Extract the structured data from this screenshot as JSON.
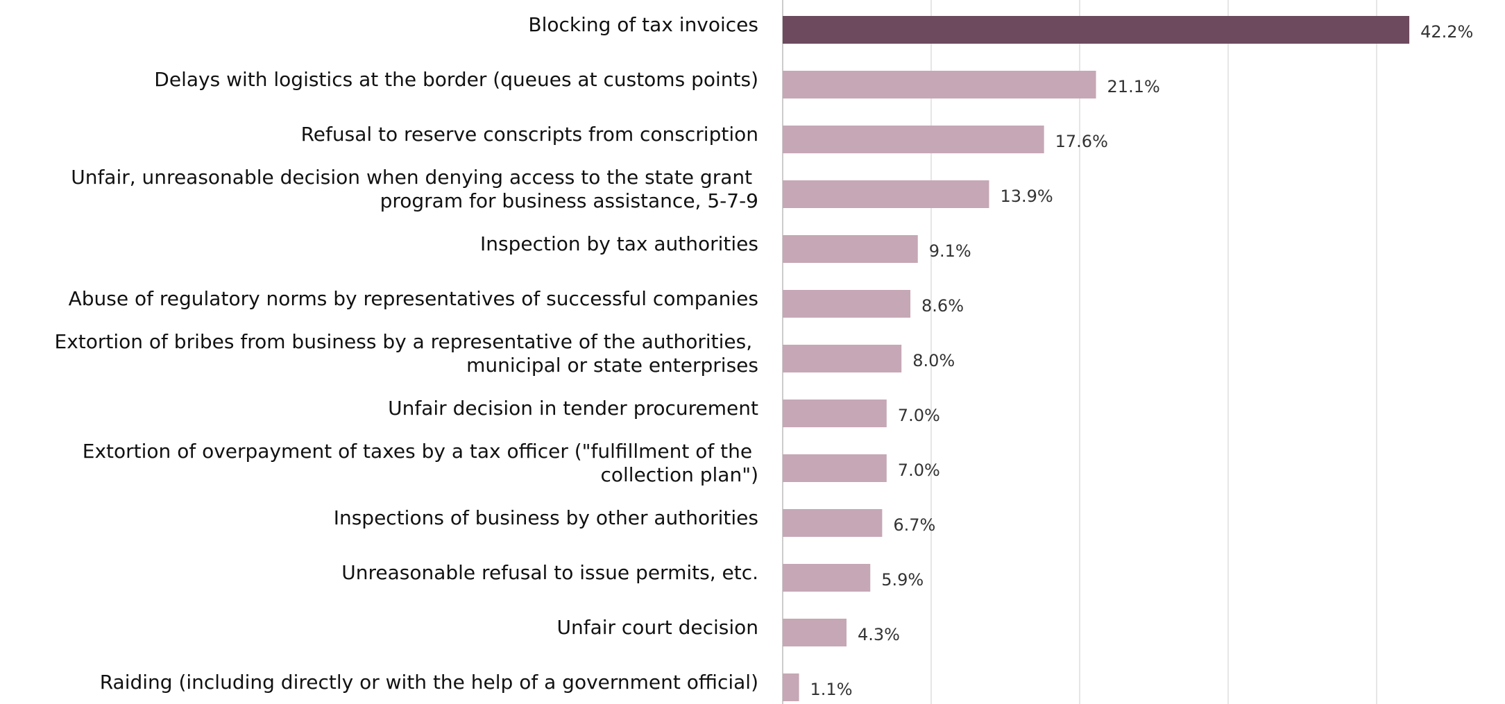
{
  "chart_data": {
    "type": "hbar",
    "categories": [
      "Blocking of tax invoices",
      "Delays with logistics at the border (queues at customs points)",
      "Refusal to reserve conscripts from conscription",
      "Unfair, unreasonable decision when denying access to the state grant program for business assistance, 5-7-9",
      "Inspection by tax authorities",
      "Abuse of regulatory norms by representatives of successful companies",
      "Extortion of bribes from business by a representative of the authorities, municipal or state enterprises",
      "Unfair decision in tender procurement",
      "Extortion of overpayment of taxes by a tax officer (\"fulfillment of the collection plan\")",
      "Inspections of business by other authorities",
      "Unreasonable refusal to issue permits, etc.",
      "Unfair court decision",
      "Raiding (including directly or with the help of a government official)"
    ],
    "values": [
      42.2,
      21.1,
      17.6,
      13.9,
      9.1,
      8.6,
      8.0,
      7.0,
      7.0,
      6.7,
      5.9,
      4.3,
      1.1
    ],
    "value_labels": [
      "42.2%",
      "21.1%",
      "17.6%",
      "13.9%",
      "9.1%",
      "8.6%",
      "8.0%",
      "7.0%",
      "7.0%",
      "6.7%",
      "5.9%",
      "4.3%",
      "1.1%"
    ],
    "colors": [
      "#6d4a5e",
      "#c6a7b5",
      "#c6a7b5",
      "#c6a7b5",
      "#c6a7b5",
      "#c6a7b5",
      "#c6a7b5",
      "#c6a7b5",
      "#c6a7b5",
      "#c6a7b5",
      "#c6a7b5",
      "#c6a7b5",
      "#c6a7b5"
    ],
    "xlim": [
      0,
      45
    ],
    "xticks": [
      0,
      10,
      20,
      30,
      40
    ],
    "grid": true
  }
}
